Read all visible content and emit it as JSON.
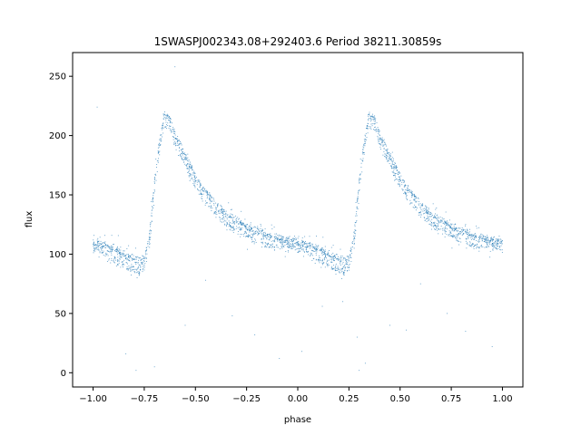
{
  "chart_data": {
    "type": "scatter",
    "title": "1SWASPJ002343.08+292403.6 Period 38211.30859s",
    "xlabel": "phase",
    "ylabel": "flux",
    "xlim": [
      -1.1,
      1.1
    ],
    "ylim": [
      -12,
      270
    ],
    "x_ticks": [
      -1.0,
      -0.75,
      -0.5,
      -0.25,
      0.0,
      0.25,
      0.5,
      0.75,
      1.0
    ],
    "x_tick_labels": [
      "−1.00",
      "−0.75",
      "−0.50",
      "−0.25",
      "0.00",
      "0.25",
      "0.50",
      "0.75",
      "1.00"
    ],
    "y_ticks": [
      0,
      50,
      100,
      150,
      200,
      250
    ],
    "y_tick_labels": [
      "0",
      "50",
      "100",
      "150",
      "200",
      "250"
    ],
    "grid": false,
    "marker_color": "#1f77b4",
    "series": [
      {
        "curve_phase": [
          0.0,
          0.05,
          0.1,
          0.15,
          0.2,
          0.225,
          0.25,
          0.275,
          0.3,
          0.325,
          0.35,
          0.375,
          0.4,
          0.45,
          0.5,
          0.55,
          0.6,
          0.65,
          0.7,
          0.75,
          0.8,
          0.85,
          0.9,
          0.95,
          1.0
        ],
        "curve_flux": [
          110,
          108,
          104,
          99,
          95,
          94,
          97,
          115,
          160,
          195,
          217,
          214,
          200,
          183,
          165,
          152,
          142,
          134,
          128,
          123,
          119,
          116,
          113,
          111,
          110
        ],
        "outlier_phase": [
          -0.98,
          -0.84,
          -0.79,
          -0.6,
          -0.55,
          -0.45,
          -0.32,
          -0.21,
          -0.09,
          0.02,
          0.12,
          0.22,
          0.29,
          0.33,
          0.45,
          0.53,
          0.6,
          0.73,
          0.82,
          0.95,
          -0.7,
          0.3
        ],
        "outlier_flux": [
          224,
          16,
          2,
          258,
          40,
          78,
          48,
          32,
          12,
          18,
          56,
          60,
          30,
          8,
          40,
          36,
          75,
          50,
          35,
          22,
          5,
          2
        ]
      }
    ]
  }
}
